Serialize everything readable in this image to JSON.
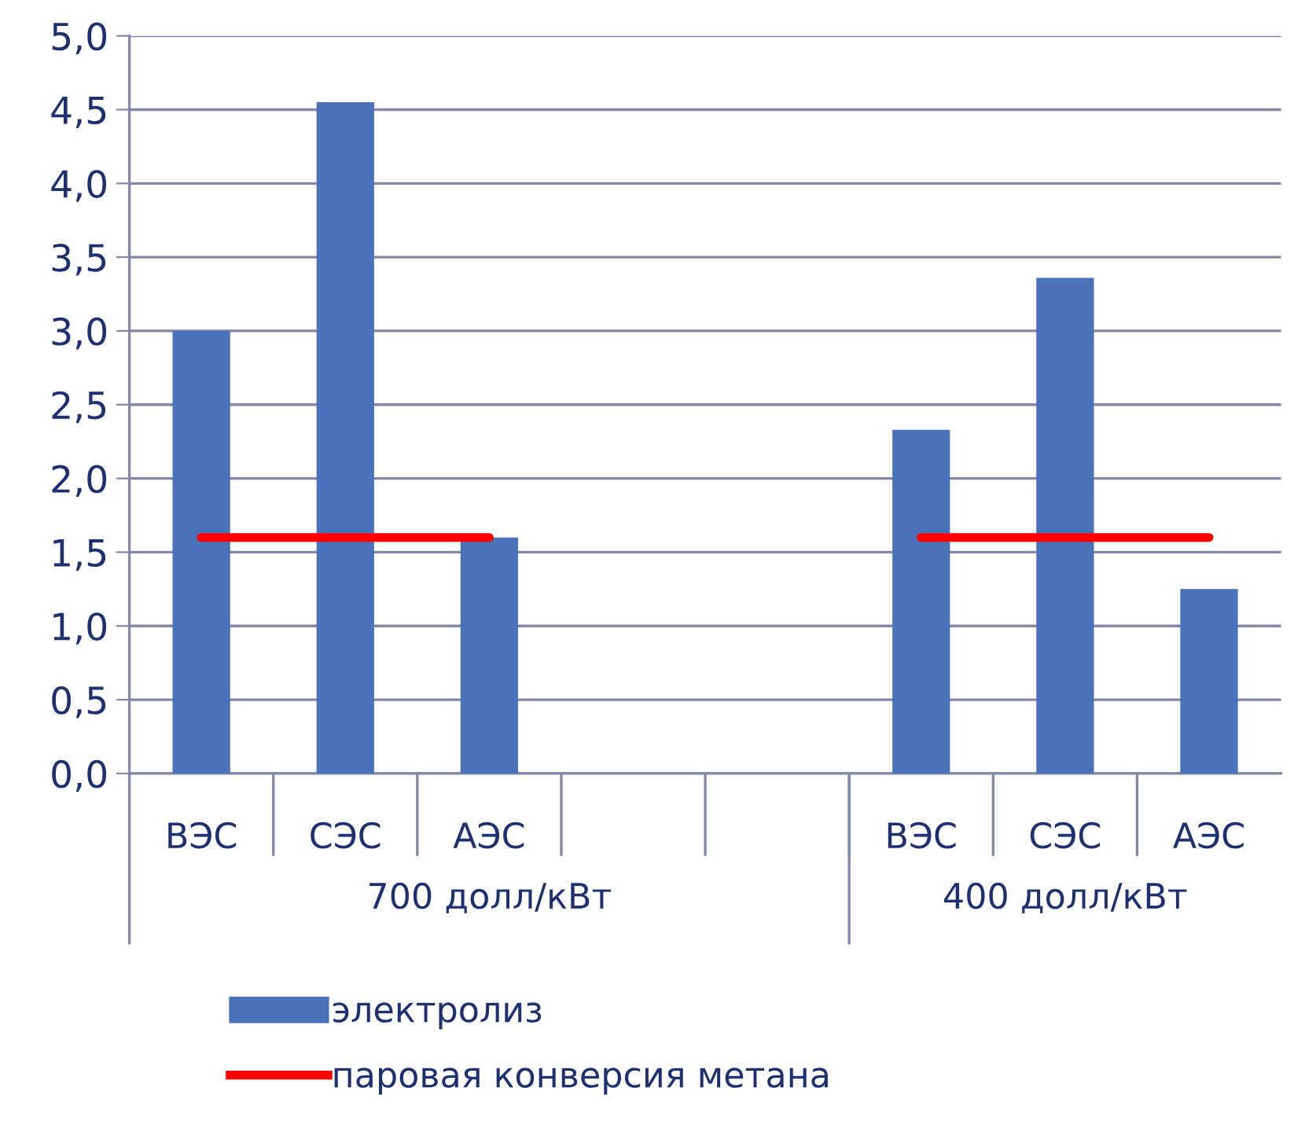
{
  "chart_data": {
    "type": "bar",
    "categories": [
      "ВЭС",
      "СЭС",
      "АЭС",
      null,
      null,
      "ВЭС",
      "СЭС",
      "АЭС"
    ],
    "series": [
      {
        "name": "электролиз",
        "color": "#4a72b8",
        "values": [
          3.0,
          4.55,
          1.6,
          null,
          null,
          2.33,
          3.36,
          1.25
        ]
      },
      {
        "name": "паровая конверсия метана",
        "type": "line",
        "color": "#ff0000",
        "values": [
          1.6,
          1.6,
          1.6,
          null,
          null,
          1.6,
          1.6,
          1.6
        ]
      }
    ],
    "annotations": [
      "700 долл/кВт",
      "400 долл/кВт"
    ],
    "ylim": [
      0,
      5
    ],
    "yticks": [
      {
        "value": 0,
        "label": "0,0"
      },
      {
        "value": 0.5,
        "label": "0,5"
      },
      {
        "value": 1,
        "label": "1,0"
      },
      {
        "value": 1.5,
        "label": "1,5"
      },
      {
        "value": 2,
        "label": "2,0"
      },
      {
        "value": 2.5,
        "label": "2,5"
      },
      {
        "value": 3,
        "label": "3,0"
      },
      {
        "value": 3.5,
        "label": "3,5"
      },
      {
        "value": 4,
        "label": "4,0"
      },
      {
        "value": 4.5,
        "label": "4,5"
      },
      {
        "value": 5,
        "label": "5,0"
      }
    ],
    "grid": "y",
    "legend": "bottom"
  }
}
